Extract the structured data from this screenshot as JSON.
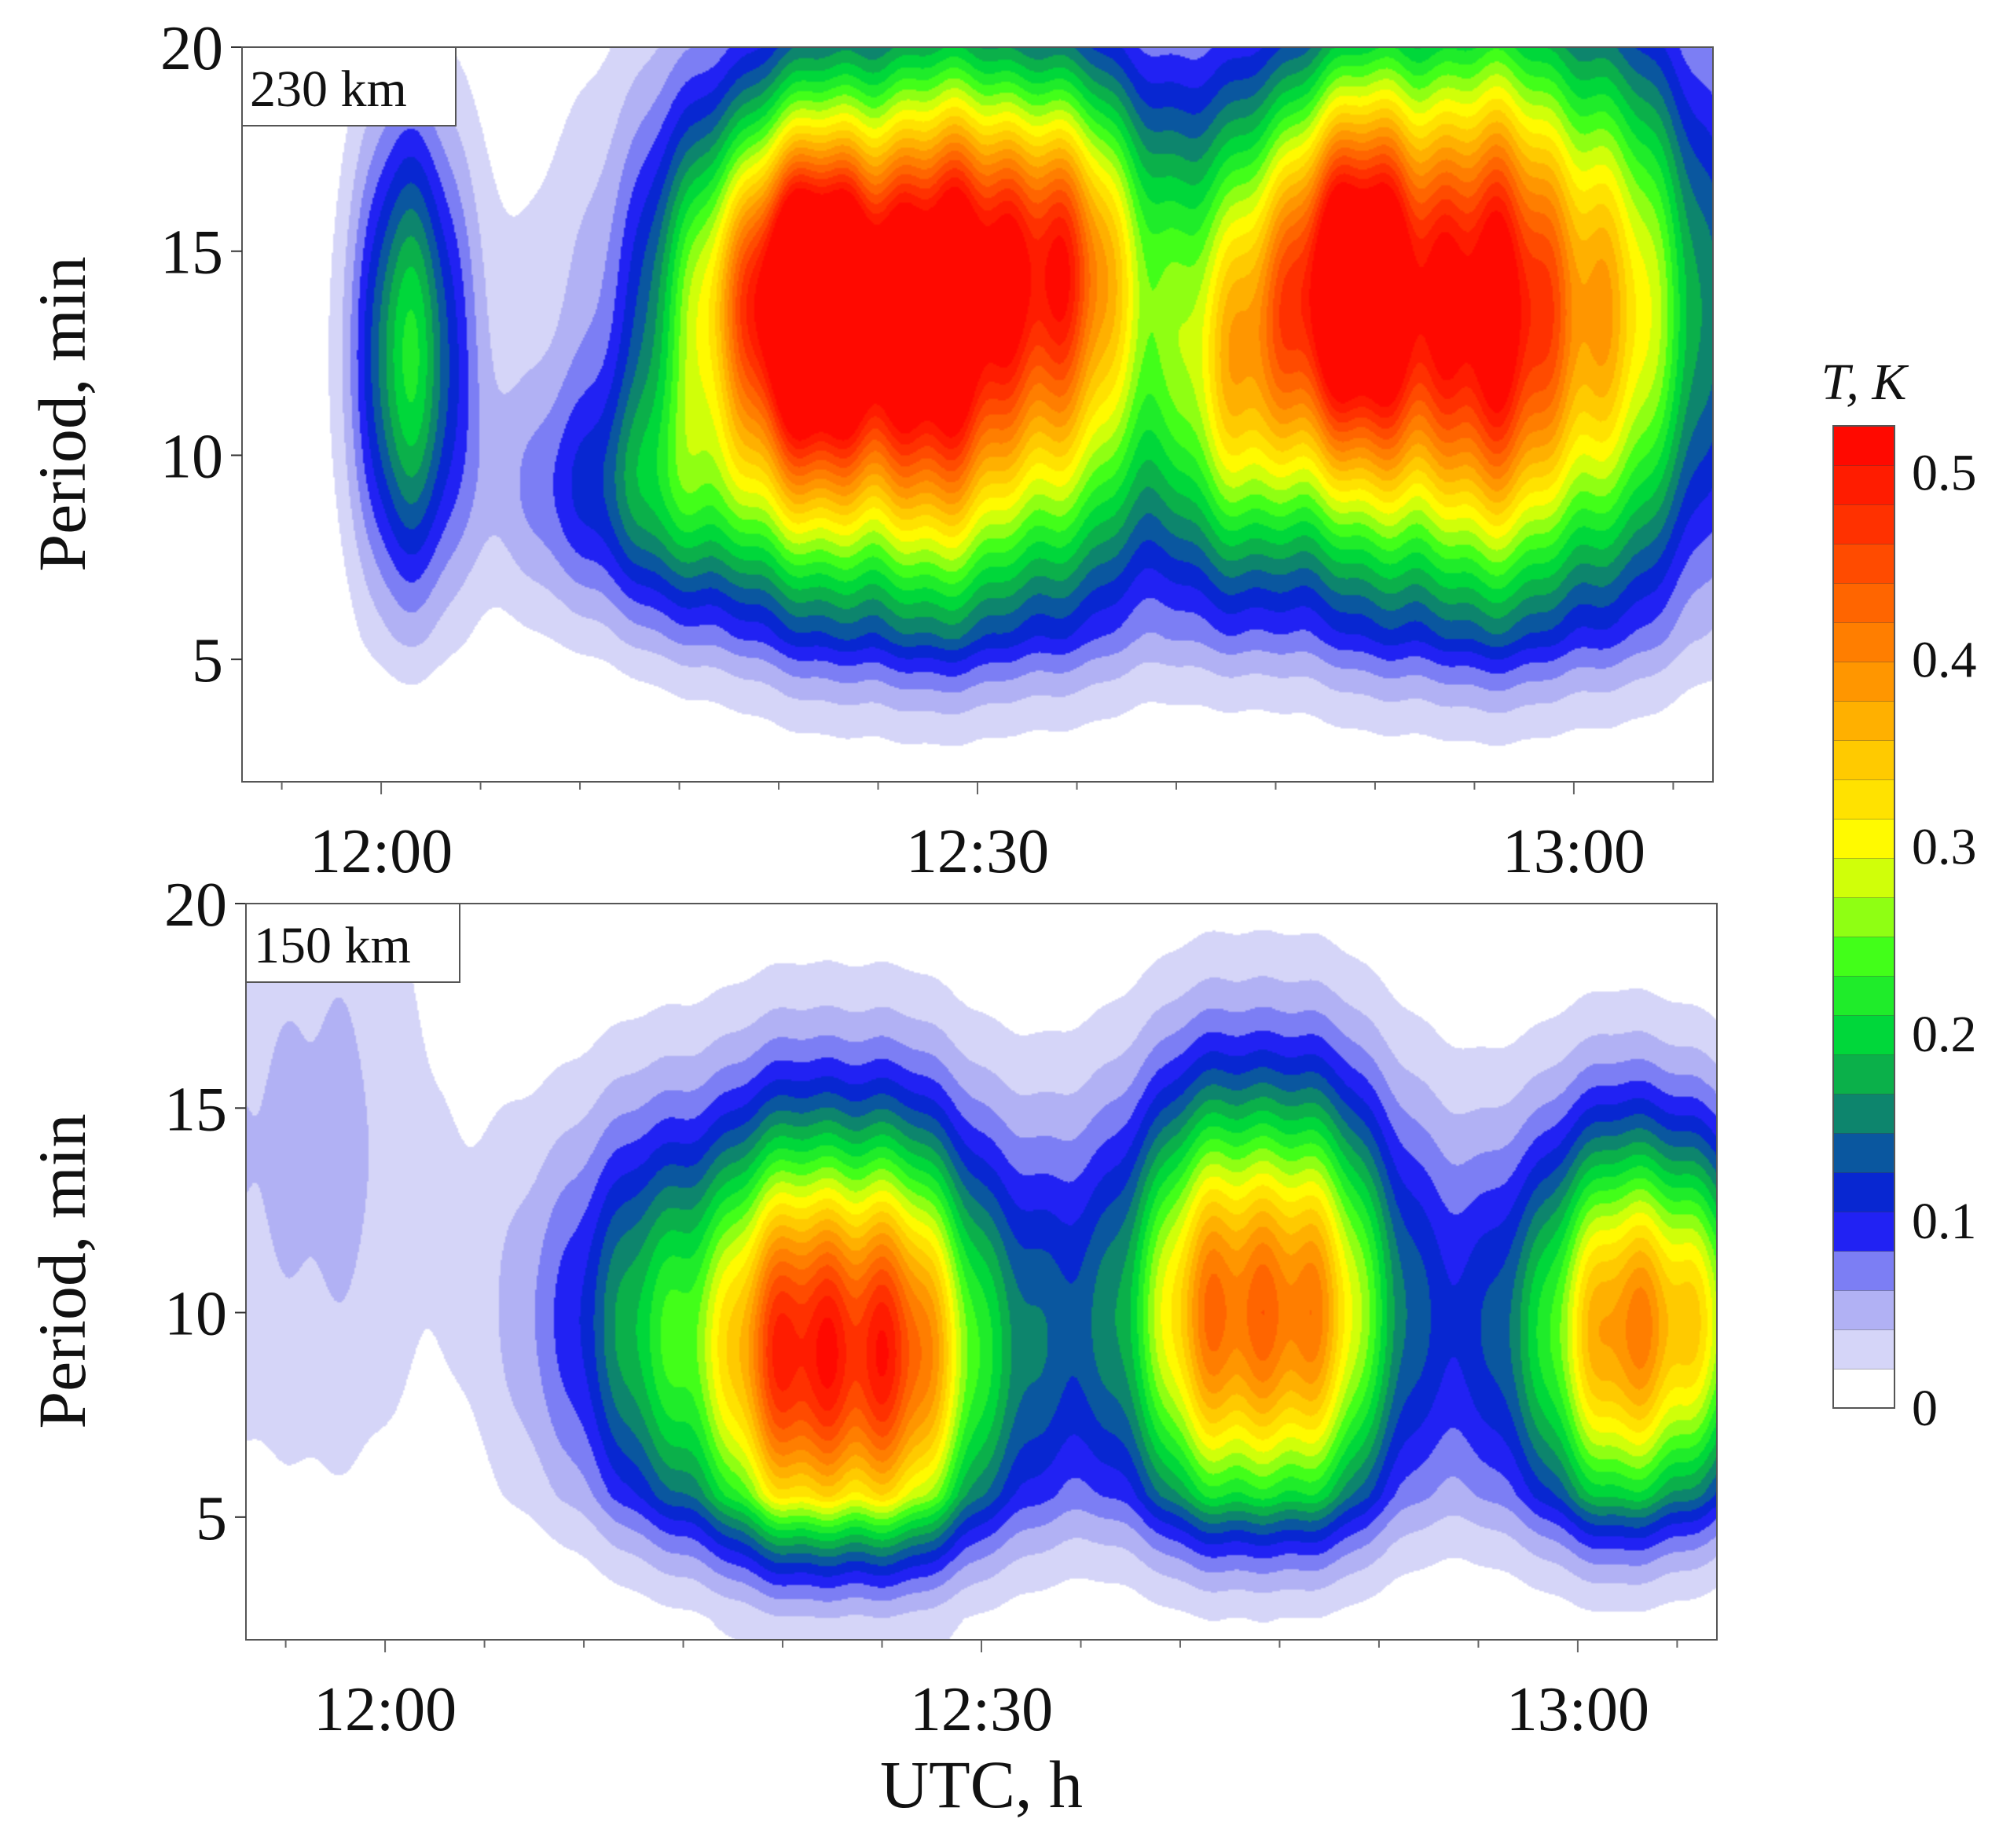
{
  "chart_data": [
    {
      "type": "heatmap",
      "panel_label": "230 km",
      "ylabel": "Period, min",
      "xlabel": "",
      "x_ticks": [
        "12:00",
        "12:30",
        "13:00"
      ],
      "x_tick_values_min": [
        720,
        750,
        780
      ],
      "xlim_min": [
        713,
        787
      ],
      "y_ticks": [
        "5",
        "10",
        "15",
        "20"
      ],
      "y_tick_values": [
        5,
        10,
        15,
        20
      ],
      "ylim": [
        2,
        20
      ],
      "blobs": [
        {
          "t": 721.5,
          "p": 12.5,
          "amp": 0.2,
          "st": 2.0,
          "sp": 4.0
        },
        {
          "t": 747.5,
          "p": 13.0,
          "amp": 0.52,
          "st": 8.0,
          "sp": 4.6
        },
        {
          "t": 741.0,
          "p": 14.0,
          "amp": 0.3,
          "st": 3.5,
          "sp": 2.6
        },
        {
          "t": 753.0,
          "p": 15.5,
          "amp": 0.15,
          "st": 3.5,
          "sp": 2.5
        },
        {
          "t": 775.5,
          "p": 13.5,
          "amp": 0.52,
          "st": 7.5,
          "sp": 4.8
        },
        {
          "t": 768.0,
          "p": 14.5,
          "amp": 0.25,
          "st": 3.0,
          "sp": 3.0
        },
        {
          "t": 763.5,
          "p": 11.0,
          "amp": 0.12,
          "st": 2.5,
          "sp": 3.0
        },
        {
          "t": 734.0,
          "p": 9.0,
          "amp": 0.11,
          "st": 5.0,
          "sp": 2.0
        }
      ]
    },
    {
      "type": "heatmap",
      "panel_label": "150 km",
      "ylabel": "Period, min",
      "xlabel": "UTC, h",
      "x_ticks": [
        "12:00",
        "12:30",
        "13:00"
      ],
      "x_tick_values_min": [
        720,
        750,
        780
      ],
      "xlim_min": [
        713,
        787
      ],
      "y_ticks": [
        "5",
        "10",
        "15",
        "20"
      ],
      "y_tick_values": [
        5,
        10,
        15,
        20
      ],
      "ylim": [
        2,
        20
      ],
      "blobs": [
        {
          "t": 743.0,
          "p": 9.0,
          "amp": 0.52,
          "st": 5.5,
          "sp": 3.8
        },
        {
          "t": 764.0,
          "p": 10.0,
          "amp": 0.45,
          "st": 5.0,
          "sp": 3.8
        },
        {
          "t": 782.0,
          "p": 9.5,
          "amp": 0.34,
          "st": 4.0,
          "sp": 3.5
        },
        {
          "t": 786.0,
          "p": 10.0,
          "amp": 0.14,
          "st": 2.5,
          "sp": 3.0
        },
        {
          "t": 732.0,
          "p": 10.0,
          "amp": 0.1,
          "st": 4.0,
          "sp": 3.5
        },
        {
          "t": 716.0,
          "p": 14.0,
          "amp": 0.05,
          "st": 5.0,
          "sp": 6.0
        }
      ]
    }
  ],
  "colorbar": {
    "title": "T, K",
    "tick_labels": [
      "0",
      "0.1",
      "0.2",
      "0.3",
      "0.4",
      "0.5"
    ],
    "tick_values": [
      0,
      0.1,
      0.2,
      0.3,
      0.4,
      0.5
    ],
    "range": [
      0,
      0.525
    ],
    "levels": 25,
    "stops": [
      [
        0.0,
        "#ffffff"
      ],
      [
        0.02,
        "#ffffff"
      ],
      [
        0.03,
        "#d8d8f8"
      ],
      [
        0.06,
        "#a4a4f2"
      ],
      [
        0.085,
        "#5a5ef6"
      ],
      [
        0.1,
        "#0000f2"
      ],
      [
        0.12,
        "#0a32c8"
      ],
      [
        0.145,
        "#0a6a8a"
      ],
      [
        0.17,
        "#10a050"
      ],
      [
        0.2,
        "#00d83a"
      ],
      [
        0.24,
        "#3cff1a"
      ],
      [
        0.27,
        "#aaff10"
      ],
      [
        0.3,
        "#ffff00"
      ],
      [
        0.34,
        "#ffd200"
      ],
      [
        0.38,
        "#ffa000"
      ],
      [
        0.43,
        "#ff6600"
      ],
      [
        0.48,
        "#ff2800"
      ],
      [
        0.525,
        "#ff0000"
      ]
    ]
  }
}
